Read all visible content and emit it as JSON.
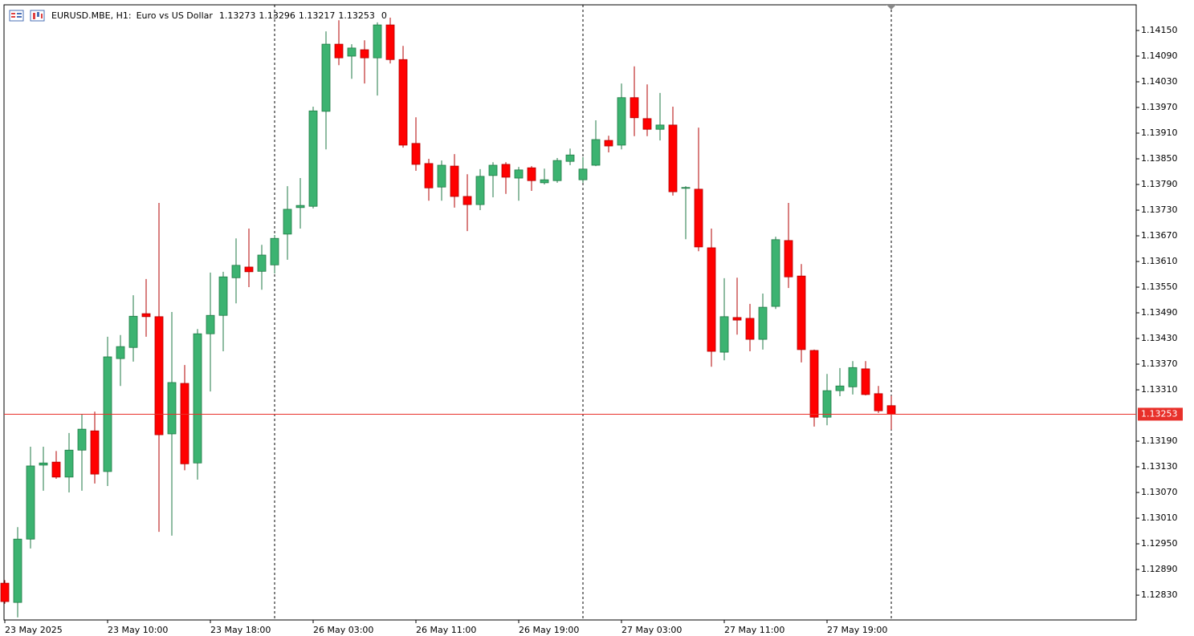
{
  "chart_data": {
    "type": "candlestick",
    "title": "EURUSD.MBE, H1:",
    "subtitle": "Euro vs US Dollar",
    "header_value": 0,
    "categories": [
      "23 May 2025",
      null,
      null,
      null,
      null,
      null,
      null,
      null,
      "23 May 10:00",
      null,
      null,
      null,
      null,
      null,
      null,
      null,
      "23 May 18:00",
      null,
      null,
      null,
      null,
      null,
      null,
      null,
      "26 May 03:00",
      null,
      null,
      null,
      null,
      null,
      null,
      null,
      "26 May 11:00",
      null,
      null,
      null,
      null,
      null,
      null,
      null,
      "26 May 19:00",
      null,
      null,
      null,
      null,
      null,
      null,
      null,
      "27 May 03:00",
      null,
      null,
      null,
      null,
      null,
      null,
      null,
      "27 May 11:00",
      null,
      null,
      null,
      null,
      null,
      null,
      null,
      "27 May 19:00",
      null,
      null,
      null,
      null,
      null
    ],
    "open": [
      1.12858,
      1.12813,
      1.12961,
      1.13134,
      1.13141,
      1.13106,
      1.13169,
      1.13214,
      1.13119,
      1.13383,
      1.13409,
      1.13488,
      1.13481,
      1.13207,
      1.13325,
      1.13139,
      1.13441,
      1.13484,
      1.13572,
      1.13597,
      1.13587,
      1.13602,
      1.13674,
      1.13736,
      1.13739,
      1.13961,
      1.14118,
      1.1409,
      1.14105,
      1.14086,
      1.14163,
      1.14082,
      1.13886,
      1.13839,
      1.13784,
      1.13833,
      1.13762,
      1.13743,
      1.13811,
      1.13837,
      1.13805,
      1.13829,
      1.13794,
      1.13799,
      1.13844,
      1.13801,
      1.13835,
      1.13893,
      1.13882,
      1.13993,
      1.13944,
      1.13919,
      1.13929,
      1.13781,
      1.13779,
      1.13642,
      1.13398,
      1.13479,
      1.13477,
      1.13428,
      1.13505,
      1.13659,
      1.13576,
      1.13402,
      1.13246,
      1.13308,
      1.13317,
      1.13359,
      1.13301,
      1.13273
    ],
    "high": [
      1.12865,
      1.12989,
      1.13177,
      1.13177,
      1.13167,
      1.13209,
      1.13252,
      1.13259,
      1.13434,
      1.13438,
      1.13531,
      1.13569,
      1.13747,
      1.13492,
      1.13368,
      1.13452,
      1.13584,
      1.13586,
      1.13664,
      1.13687,
      1.13649,
      1.13672,
      1.13786,
      1.13805,
      1.13972,
      1.14148,
      1.14174,
      1.14118,
      1.14127,
      1.14169,
      1.1418,
      1.14114,
      1.13947,
      1.1385,
      1.13846,
      1.13861,
      1.13814,
      1.13826,
      1.13842,
      1.13842,
      1.13831,
      1.13833,
      1.13827,
      1.13852,
      1.13874,
      1.13854,
      1.1394,
      1.13904,
      1.14026,
      1.14066,
      1.14024,
      1.14004,
      1.13972,
      1.13786,
      1.13923,
      1.13687,
      1.13571,
      1.13572,
      1.13511,
      1.13535,
      1.13668,
      1.13747,
      1.13604,
      1.13404,
      1.13347,
      1.13361,
      1.13377,
      1.13377,
      1.13319,
      1.13296
    ],
    "low": [
      1.1281,
      1.12778,
      1.12939,
      1.13074,
      1.13102,
      1.1307,
      1.13074,
      1.13091,
      1.13085,
      1.13319,
      1.13376,
      1.13434,
      1.12978,
      1.12969,
      1.13122,
      1.131,
      1.13306,
      1.134,
      1.13512,
      1.1355,
      1.13544,
      1.13582,
      1.13614,
      1.13687,
      1.13734,
      1.13872,
      1.14069,
      1.14037,
      1.14026,
      1.13998,
      1.14073,
      1.13876,
      1.13822,
      1.13752,
      1.13752,
      1.13736,
      1.13681,
      1.1373,
      1.1376,
      1.13768,
      1.13752,
      1.13775,
      1.1379,
      1.13794,
      1.13835,
      1.13794,
      1.13833,
      1.13865,
      1.13872,
      1.13903,
      1.13903,
      1.13893,
      1.13764,
      1.13662,
      1.13634,
      1.13364,
      1.13379,
      1.13439,
      1.134,
      1.13404,
      1.13499,
      1.13548,
      1.13374,
      1.13224,
      1.13227,
      1.13295,
      1.13299,
      1.13297,
      1.13256,
      1.13217
    ],
    "close": [
      1.12815,
      1.12961,
      1.13132,
      1.13139,
      1.13106,
      1.13169,
      1.13218,
      1.13113,
      1.13387,
      1.13411,
      1.13482,
      1.13481,
      1.13205,
      1.13327,
      1.13137,
      1.13441,
      1.13484,
      1.13574,
      1.13601,
      1.13586,
      1.13625,
      1.13664,
      1.13732,
      1.13741,
      1.13962,
      1.14118,
      1.14086,
      1.14109,
      1.14086,
      1.14163,
      1.14082,
      1.13882,
      1.13837,
      1.13782,
      1.13835,
      1.13762,
      1.13743,
      1.13809,
      1.13835,
      1.13807,
      1.13824,
      1.13799,
      1.13801,
      1.13846,
      1.13859,
      1.13826,
      1.13895,
      1.1388,
      1.13993,
      1.13946,
      1.13919,
      1.13929,
      1.13773,
      1.13783,
      1.13644,
      1.134,
      1.13481,
      1.13473,
      1.13428,
      1.13503,
      1.13661,
      1.13574,
      1.13404,
      1.13246,
      1.13308,
      1.13319,
      1.13362,
      1.13299,
      1.13261,
      1.13253
    ],
    "up_color": "#3cb371",
    "up_edge": "#1f7a45",
    "down_color": "#ff0000",
    "down_edge": "#b30000",
    "current_price": 1.13253,
    "current_price_color": "#e8302a",
    "ylim": [
      1.12772,
      1.1421
    ],
    "yticks": [
      {
        "value": 1.1415,
        "label": "1.14150"
      },
      {
        "value": 1.1409,
        "label": "1.14090"
      },
      {
        "value": 1.1403,
        "label": "1.14030"
      },
      {
        "value": 1.1397,
        "label": "1.13970"
      },
      {
        "value": 1.1391,
        "label": "1.13910"
      },
      {
        "value": 1.1385,
        "label": "1.13850"
      },
      {
        "value": 1.1379,
        "label": "1.13790"
      },
      {
        "value": 1.1373,
        "label": "1.13730"
      },
      {
        "value": 1.1367,
        "label": "1.13670"
      },
      {
        "value": 1.1361,
        "label": "1.13610"
      },
      {
        "value": 1.1355,
        "label": "1.13550"
      },
      {
        "value": 1.1349,
        "label": "1.13490"
      },
      {
        "value": 1.1343,
        "label": "1.13430"
      },
      {
        "value": 1.1337,
        "label": "1.13370"
      },
      {
        "value": 1.1331,
        "label": "1.13310"
      },
      {
        "value": 1.1319,
        "label": "1.13190"
      },
      {
        "value": 1.1313,
        "label": "1.13130"
      },
      {
        "value": 1.1307,
        "label": "1.13070"
      },
      {
        "value": 1.1301,
        "label": "1.13010"
      },
      {
        "value": 1.1295,
        "label": "1.12950"
      },
      {
        "value": 1.1289,
        "label": "1.12890"
      },
      {
        "value": 1.1283,
        "label": "1.12830"
      }
    ],
    "grid": false
  }
}
